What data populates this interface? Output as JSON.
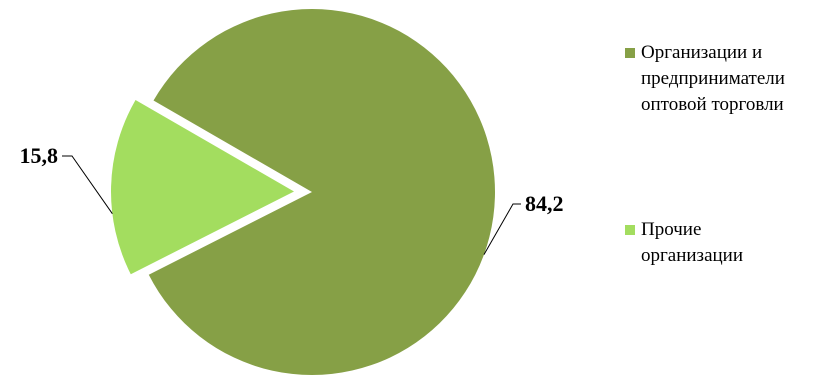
{
  "chart_data": {
    "type": "pie",
    "series": [
      {
        "values": [
          84.2,
          15.8
        ],
        "labels": [
          "84,2",
          "15,8"
        ],
        "colors": [
          "#86a046",
          "#a3dd5f"
        ],
        "exploded": [
          false,
          true
        ]
      }
    ],
    "legend": {
      "position": "right",
      "entries": [
        {
          "text": "Организации и предприниматели оптовой торговли",
          "color": "#86a046"
        },
        {
          "text": "Прочие организации",
          "color": "#a3dd5f"
        }
      ]
    }
  }
}
